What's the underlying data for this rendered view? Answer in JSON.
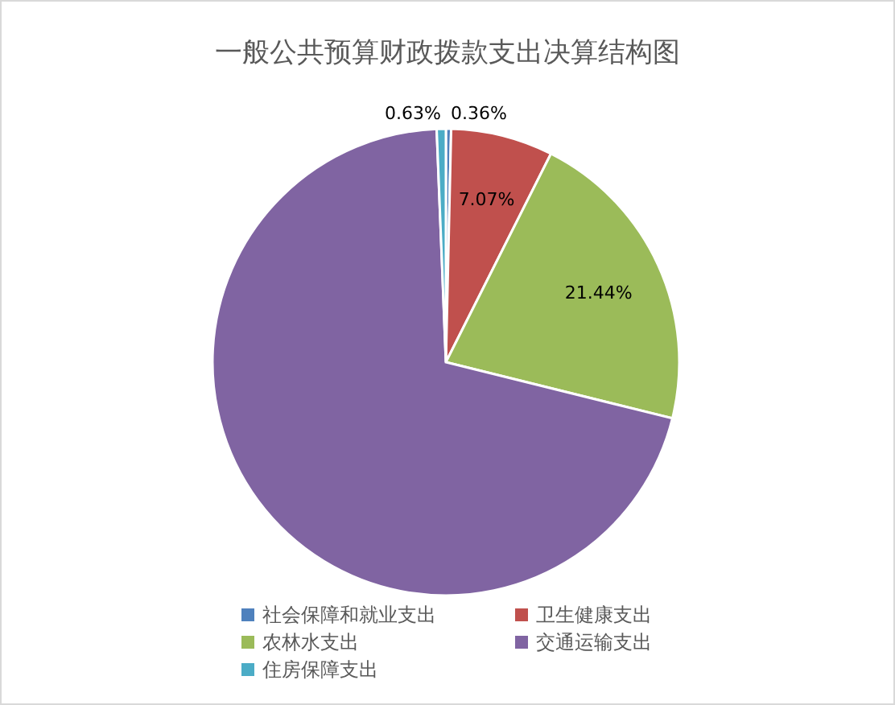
{
  "chart_data": {
    "type": "pie",
    "title": "一般公共预算财政拨款支出决算结构图",
    "categories": [
      "社会保障和就业支出",
      "卫生健康支出",
      "农林水支出",
      "交通运输支出",
      "住房保障支出"
    ],
    "values": [
      0.36,
      7.07,
      21.44,
      70.5,
      0.63
    ],
    "colors": [
      "#4f81bd",
      "#c0504d",
      "#9bbb59",
      "#8064a2",
      "#4bacc6"
    ],
    "value_labels": [
      "0.36%",
      "7.07%",
      "21.44%",
      null,
      "0.63%"
    ],
    "legend": "bottom"
  }
}
